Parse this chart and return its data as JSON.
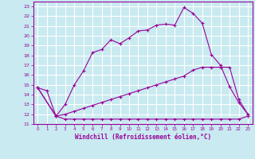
{
  "xlabel": "Windchill (Refroidissement éolien,°C)",
  "bg_color": "#c8eaf0",
  "grid_color": "#ffffff",
  "line_color": "#990099",
  "xlim": [
    -0.5,
    23.5
  ],
  "ylim": [
    11,
    23.5
  ],
  "xticks": [
    0,
    1,
    2,
    3,
    4,
    5,
    6,
    7,
    8,
    9,
    10,
    11,
    12,
    13,
    14,
    15,
    16,
    17,
    18,
    19,
    20,
    21,
    22,
    23
  ],
  "yticks": [
    11,
    12,
    13,
    14,
    15,
    16,
    17,
    18,
    19,
    20,
    21,
    22,
    23
  ],
  "line1_x": [
    0,
    1,
    2,
    3,
    4,
    5,
    6,
    7,
    8,
    9,
    10,
    11,
    12,
    13,
    14,
    15,
    16,
    17,
    18,
    19,
    20,
    21,
    22,
    23
  ],
  "line1_y": [
    14.7,
    14.4,
    11.8,
    13.0,
    15.0,
    16.4,
    18.3,
    18.6,
    19.6,
    19.2,
    19.8,
    20.5,
    20.6,
    21.1,
    21.2,
    21.1,
    22.9,
    22.3,
    21.3,
    18.1,
    17.0,
    14.8,
    13.2,
    12.0
  ],
  "line2_x": [
    0,
    2,
    3,
    4,
    5,
    6,
    7,
    8,
    9,
    10,
    11,
    12,
    13,
    14,
    15,
    16,
    17,
    18,
    19,
    20,
    21,
    22,
    23
  ],
  "line2_y": [
    14.7,
    11.8,
    12.0,
    12.3,
    12.6,
    12.9,
    13.2,
    13.5,
    13.8,
    14.1,
    14.4,
    14.7,
    15.0,
    15.3,
    15.6,
    15.9,
    16.5,
    16.8,
    16.8,
    16.8,
    16.8,
    13.5,
    12.0
  ],
  "line3_x": [
    0,
    2,
    3,
    4,
    5,
    6,
    7,
    8,
    9,
    10,
    11,
    12,
    13,
    14,
    15,
    16,
    17,
    18,
    19,
    20,
    21,
    22,
    23
  ],
  "line3_y": [
    14.7,
    11.8,
    11.5,
    11.5,
    11.5,
    11.5,
    11.5,
    11.5,
    11.5,
    11.5,
    11.5,
    11.5,
    11.5,
    11.5,
    11.5,
    11.5,
    11.5,
    11.5,
    11.5,
    11.5,
    11.5,
    11.5,
    11.8
  ]
}
